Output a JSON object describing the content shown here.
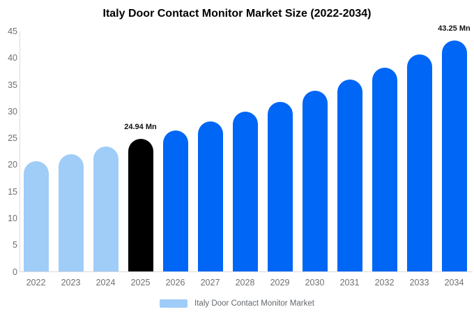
{
  "title": "Italy Door Contact Monitor Market Size (2022-2034)",
  "legend": {
    "label": "Italy Door Contact Monitor Market",
    "swatch_color": "#a0ccf8"
  },
  "colors": {
    "historical_bar": "#a0ccf8",
    "base_year_bar": "#000000",
    "forecast_bar": "#0066f5",
    "axis_line": "#dbdbdb",
    "tick_text": "#707070",
    "data_label_text": "#111111",
    "background": "#ffffff"
  },
  "chart_data": {
    "type": "bar",
    "title": "Italy Door Contact Monitor Market Size (2022-2034)",
    "categories": [
      "2022",
      "2023",
      "2024",
      "2025",
      "2026",
      "2027",
      "2028",
      "2029",
      "2030",
      "2031",
      "2032",
      "2033",
      "2034"
    ],
    "values": [
      20.75,
      22.06,
      23.46,
      24.94,
      26.51,
      28.19,
      29.96,
      31.85,
      33.86,
      36.0,
      38.27,
      40.68,
      43.25
    ],
    "value_unit": "Mn",
    "bar_colors": [
      "#a0ccf8",
      "#a0ccf8",
      "#a0ccf8",
      "#000000",
      "#0066f5",
      "#0066f5",
      "#0066f5",
      "#0066f5",
      "#0066f5",
      "#0066f5",
      "#0066f5",
      "#0066f5",
      "#0066f5"
    ],
    "point_labels": [
      "",
      "",
      "",
      "24.94 Mn",
      "",
      "",
      "",
      "",
      "",
      "",
      "",
      "",
      "43.25 Mn"
    ],
    "xlabel": "",
    "ylabel": "",
    "ylim": [
      0,
      45
    ],
    "yticks": [
      0,
      5,
      10,
      15,
      20,
      25,
      30,
      35,
      40,
      45
    ],
    "grid": false,
    "legend_position": "bottom"
  }
}
